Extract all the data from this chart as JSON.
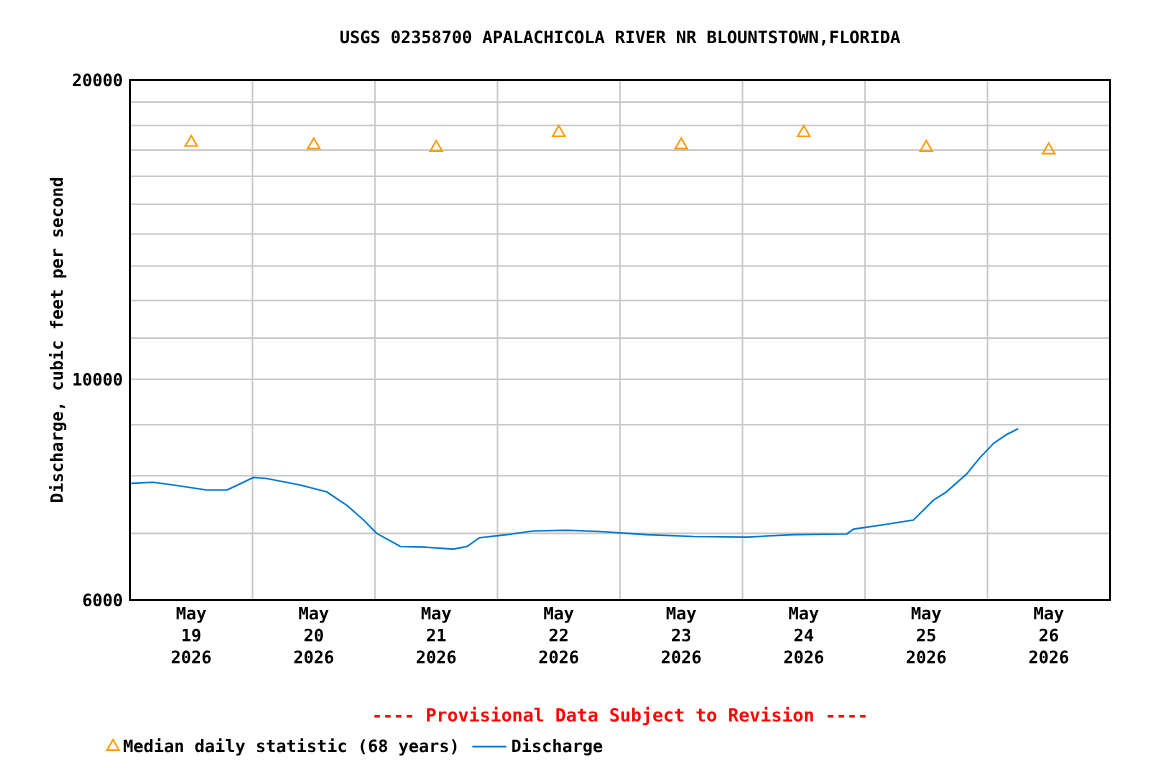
{
  "chart_data": {
    "type": "line",
    "title": "USGS 02358700 APALACHICOLA RIVER NR BLOUNTSTOWN,FLORIDA",
    "ylabel": "Discharge, cubic feet per second",
    "annotations": [
      "---- Provisional Data Subject to Revision ----"
    ],
    "xlim": [
      "2026-05-19T00:00",
      "2026-05-27T00:00"
    ],
    "xticks": [
      {
        "value": "2026-05-19T12:00",
        "label": "May 19 2026"
      },
      {
        "value": "2026-05-20T12:00",
        "label": "May 20 2026"
      },
      {
        "value": "2026-05-21T12:00",
        "label": "May 21 2026"
      },
      {
        "value": "2026-05-22T12:00",
        "label": "May 22 2026"
      },
      {
        "value": "2026-05-23T12:00",
        "label": "May 23 2026"
      },
      {
        "value": "2026-05-24T12:00",
        "label": "May 24 2026"
      },
      {
        "value": "2026-05-25T12:00",
        "label": "May 25 2026"
      },
      {
        "value": "2026-05-26T12:00",
        "label": "May 26 2026"
      },
      {
        "value": "2026-05-20T00:00",
        "label": null
      },
      {
        "value": "2026-05-21T00:00",
        "label": null
      },
      {
        "value": "2026-05-22T00:00",
        "label": null
      },
      {
        "value": "2026-05-23T00:00",
        "label": null
      },
      {
        "value": "2026-05-24T00:00",
        "label": null
      },
      {
        "value": "2026-05-25T00:00",
        "label": null
      },
      {
        "value": "2026-05-26T00:00",
        "label": null
      }
    ],
    "ylim": [
      6000,
      20000
    ],
    "yticks": [
      6000,
      {
        "value": 7000,
        "label": null
      },
      {
        "value": 8000,
        "label": null
      },
      {
        "value": 9000,
        "label": null
      },
      10000,
      {
        "value": 11000,
        "label": null
      },
      {
        "value": 12000,
        "label": null
      },
      {
        "value": 13000,
        "label": null
      },
      {
        "value": 14000,
        "label": null
      },
      {
        "value": 15000,
        "label": null
      },
      {
        "value": 16000,
        "label": null
      },
      {
        "value": 17000,
        "label": null
      },
      {
        "value": 18000,
        "label": null
      },
      {
        "value": 19000,
        "label": null
      },
      20000
    ],
    "log": "y",
    "grid": true,
    "legend": "bottom",
    "series": [
      {
        "name": "Median daily statistic (68 years)",
        "type": "scatter",
        "marker": "triangle",
        "color": "#ff9900",
        "x": [
          "2026-05-19T12:00",
          "2026-05-20T12:00",
          "2026-05-21T12:00",
          "2026-05-22T12:00",
          "2026-05-23T12:00",
          "2026-05-24T12:00",
          "2026-05-25T12:00",
          "2026-05-26T12:00"
        ],
        "values": [
          17300,
          17200,
          17100,
          17700,
          17200,
          17700,
          17100,
          17000
        ]
      },
      {
        "name": "Discharge",
        "marker": "none",
        "line_style": "solid",
        "color": "#0077cc",
        "x": [
          "2026-05-19T00:15",
          "2026-05-19T04:30",
          "2026-05-19T08:30",
          "2026-05-19T15:00",
          "2026-05-19T19:00",
          "2026-05-19T21:30",
          "2026-05-20T00:10",
          "2026-05-20T02:45",
          "2026-05-20T09:20",
          "2026-05-20T14:30",
          "2026-05-20T18:30",
          "2026-05-20T21:45",
          "2026-05-21T00:20",
          "2026-05-21T05:00",
          "2026-05-21T10:00",
          "2026-05-21T15:20",
          "2026-05-21T18:00",
          "2026-05-21T20:30",
          "2026-05-22T01:50",
          "2026-05-22T07:00",
          "2026-05-22T13:30",
          "2026-05-22T20:00",
          "2026-05-23T05:15",
          "2026-05-23T14:20",
          "2026-05-24T00:50",
          "2026-05-24T10:00",
          "2026-05-24T20:25",
          "2026-05-24T21:45",
          "2026-05-25T04:15",
          "2026-05-25T09:30",
          "2026-05-25T13:25",
          "2026-05-25T16:00",
          "2026-05-25T20:00",
          "2026-05-25T22:30",
          "2026-05-26T01:10",
          "2026-05-26T03:45",
          "2026-05-26T06:00"
        ],
        "values": [
          7860,
          7880,
          7830,
          7740,
          7740,
          7850,
          7970,
          7950,
          7830,
          7710,
          7470,
          7220,
          7000,
          6790,
          6780,
          6750,
          6790,
          6930,
          6980,
          7040,
          7050,
          7030,
          6980,
          6950,
          6940,
          6980,
          6990,
          7070,
          7150,
          7220,
          7560,
          7710,
          8040,
          8340,
          8620,
          8800,
          8920
        ]
      }
    ]
  }
}
